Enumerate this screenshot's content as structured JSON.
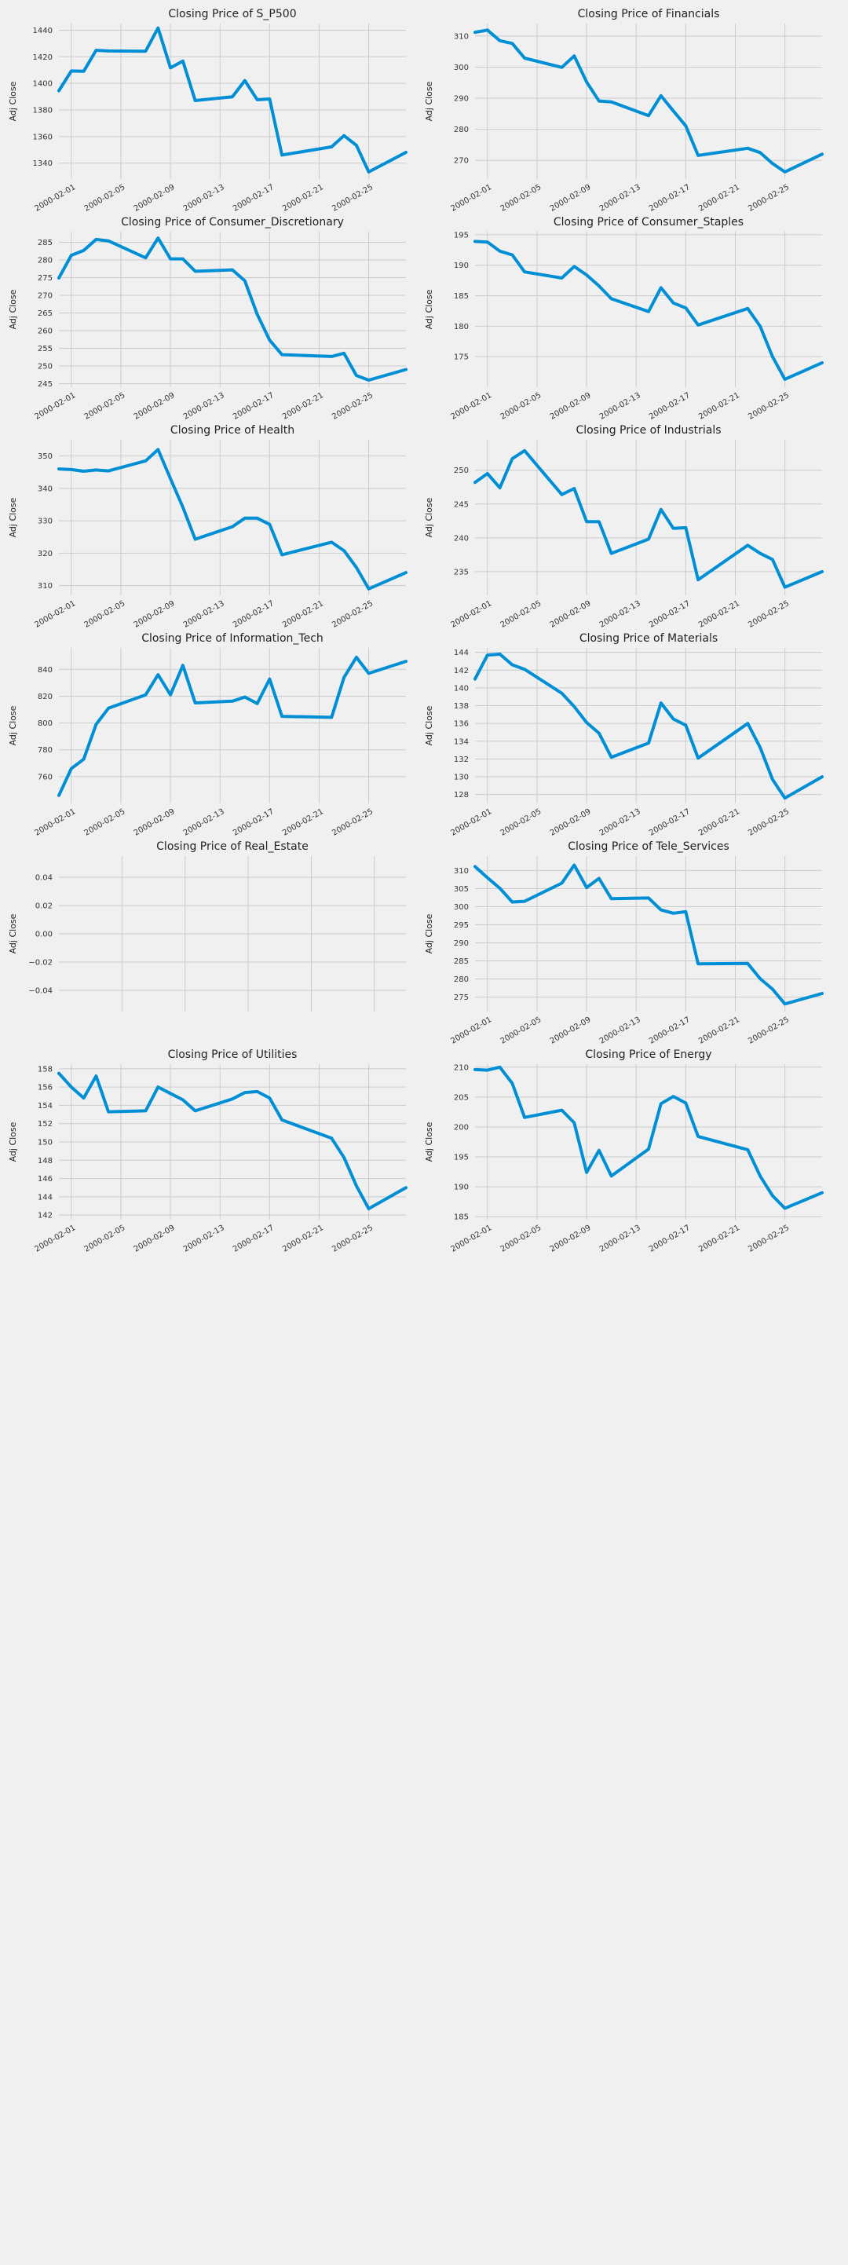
{
  "figure": {
    "background": "#f0f0f0",
    "line_color": "#008fd5",
    "grid_color": "#cbcbcb"
  },
  "chart_data": [
    {
      "type": "line",
      "title": "Closing Price of S_P500",
      "ylabel": "Adj Close",
      "xlim": [
        "2000-01-31",
        "2000-02-28"
      ],
      "ylim": [
        1328,
        1445
      ],
      "yticks": [
        1340,
        1360,
        1380,
        1400,
        1420,
        1440
      ],
      "xticks": [
        "2000-02-01",
        "2000-02-05",
        "2000-02-09",
        "2000-02-13",
        "2000-02-17",
        "2000-02-21",
        "2000-02-25"
      ],
      "grid": true,
      "series": [
        {
          "x": [
            "2000-01-31",
            "2000-02-01",
            "2000-02-02",
            "2000-02-03",
            "2000-02-04",
            "2000-02-07",
            "2000-02-08",
            "2000-02-09",
            "2000-02-10",
            "2000-02-11",
            "2000-02-14",
            "2000-02-15",
            "2000-02-16",
            "2000-02-17",
            "2000-02-18",
            "2000-02-22",
            "2000-02-23",
            "2000-02-24",
            "2000-02-25",
            "2000-02-28"
          ],
          "y": [
            1394.5,
            1409.3,
            1409.1,
            1424.9,
            1424.4,
            1424.2,
            1441.7,
            1411.7,
            1416.8,
            1387.1,
            1389.9,
            1402.1,
            1387.7,
            1388.3,
            1346.1,
            1352.2,
            1360.7,
            1353.4,
            1333.4,
            1348.1
          ]
        }
      ]
    },
    {
      "type": "line",
      "title": "Closing Price of Financials",
      "ylabel": "Adj Close",
      "xlim": [
        "2000-01-31",
        "2000-02-28"
      ],
      "ylim": [
        264,
        314
      ],
      "yticks": [
        270,
        280,
        290,
        300,
        310
      ],
      "xticks": [
        "2000-02-01",
        "2000-02-05",
        "2000-02-09",
        "2000-02-13",
        "2000-02-17",
        "2000-02-21",
        "2000-02-25"
      ],
      "grid": true,
      "series": [
        {
          "x": [
            "2000-01-31",
            "2000-02-01",
            "2000-02-02",
            "2000-02-03",
            "2000-02-04",
            "2000-02-07",
            "2000-02-08",
            "2000-02-09",
            "2000-02-10",
            "2000-02-11",
            "2000-02-14",
            "2000-02-15",
            "2000-02-16",
            "2000-02-17",
            "2000-02-18",
            "2000-02-22",
            "2000-02-23",
            "2000-02-24",
            "2000-02-25",
            "2000-02-28"
          ],
          "y": [
            311.2,
            311.9,
            308.5,
            307.6,
            302.9,
            299.9,
            303.6,
            295.2,
            289.1,
            288.8,
            284.4,
            290.8,
            285.9,
            281.1,
            271.6,
            273.9,
            272.5,
            269,
            266.3,
            272
          ]
        }
      ]
    },
    {
      "type": "line",
      "title": "Closing Price of Consumer_Discretionary",
      "ylabel": "Adj Close",
      "xlim": [
        "2000-01-31",
        "2000-02-28"
      ],
      "ylim": [
        244,
        288
      ],
      "yticks": [
        245,
        250,
        255,
        260,
        265,
        270,
        275,
        280,
        285
      ],
      "xticks": [
        "2000-02-01",
        "2000-02-05",
        "2000-02-09",
        "2000-02-13",
        "2000-02-17",
        "2000-02-21",
        "2000-02-25"
      ],
      "grid": true,
      "series": [
        {
          "x": [
            "2000-01-31",
            "2000-02-01",
            "2000-02-02",
            "2000-02-03",
            "2000-02-04",
            "2000-02-07",
            "2000-02-08",
            "2000-02-09",
            "2000-02-10",
            "2000-02-11",
            "2000-02-14",
            "2000-02-15",
            "2000-02-16",
            "2000-02-17",
            "2000-02-18",
            "2000-02-22",
            "2000-02-23",
            "2000-02-24",
            "2000-02-25",
            "2000-02-28"
          ],
          "y": [
            274.9,
            281.3,
            282.7,
            285.8,
            285.4,
            280.6,
            286.2,
            280.3,
            280.3,
            276.8,
            277.2,
            274.1,
            264.6,
            257.3,
            253.2,
            252.7,
            253.6,
            247.3,
            246,
            249
          ]
        }
      ]
    },
    {
      "type": "line",
      "title": "Closing Price of Consumer_Staples",
      "ylabel": "Adj Close",
      "xlim": [
        "2000-01-31",
        "2000-02-28"
      ],
      "ylim": [
        170,
        195.5
      ],
      "yticks": [
        175,
        180,
        185,
        190,
        195
      ],
      "xticks": [
        "2000-02-01",
        "2000-02-05",
        "2000-02-09",
        "2000-02-13",
        "2000-02-17",
        "2000-02-21",
        "2000-02-25"
      ],
      "grid": true,
      "series": [
        {
          "x": [
            "2000-01-31",
            "2000-02-01",
            "2000-02-02",
            "2000-02-03",
            "2000-02-04",
            "2000-02-07",
            "2000-02-08",
            "2000-02-09",
            "2000-02-10",
            "2000-02-11",
            "2000-02-14",
            "2000-02-15",
            "2000-02-16",
            "2000-02-17",
            "2000-02-18",
            "2000-02-22",
            "2000-02-23",
            "2000-02-24",
            "2000-02-25",
            "2000-02-28"
          ],
          "y": [
            193.9,
            193.8,
            192.3,
            191.7,
            188.9,
            187.9,
            189.8,
            188.4,
            186.6,
            184.5,
            182.4,
            186.3,
            183.8,
            183,
            180.2,
            182.9,
            180,
            175,
            171.3,
            174
          ]
        }
      ]
    },
    {
      "type": "line",
      "title": "Closing Price of Health",
      "ylabel": "Adj Close",
      "xlim": [
        "2000-01-31",
        "2000-02-28"
      ],
      "ylim": [
        307,
        355
      ],
      "yticks": [
        310,
        320,
        330,
        340,
        350
      ],
      "xticks": [
        "2000-02-01",
        "2000-02-05",
        "2000-02-09",
        "2000-02-13",
        "2000-02-17",
        "2000-02-21",
        "2000-02-25"
      ],
      "grid": true,
      "series": [
        {
          "x": [
            "2000-01-31",
            "2000-02-01",
            "2000-02-02",
            "2000-02-03",
            "2000-02-04",
            "2000-02-07",
            "2000-02-08",
            "2000-02-09",
            "2000-02-10",
            "2000-02-11",
            "2000-02-14",
            "2000-02-15",
            "2000-02-16",
            "2000-02-17",
            "2000-02-18",
            "2000-02-22",
            "2000-02-23",
            "2000-02-24",
            "2000-02-25",
            "2000-02-28"
          ],
          "y": [
            346,
            345.8,
            345.3,
            345.7,
            345.4,
            348.5,
            352,
            343,
            334.2,
            324.3,
            328.2,
            330.8,
            330.8,
            328.9,
            319.5,
            323.4,
            320.8,
            315.6,
            309,
            314
          ]
        }
      ]
    },
    {
      "type": "line",
      "title": "Closing Price of Industrials",
      "ylabel": "Adj Close",
      "xlim": [
        "2000-01-31",
        "2000-02-28"
      ],
      "ylim": [
        231.5,
        254.5
      ],
      "yticks": [
        235,
        240,
        245,
        250
      ],
      "xticks": [
        "2000-02-01",
        "2000-02-05",
        "2000-02-09",
        "2000-02-13",
        "2000-02-17",
        "2000-02-21",
        "2000-02-25"
      ],
      "grid": true,
      "series": [
        {
          "x": [
            "2000-01-31",
            "2000-02-01",
            "2000-02-02",
            "2000-02-03",
            "2000-02-04",
            "2000-02-07",
            "2000-02-08",
            "2000-02-09",
            "2000-02-10",
            "2000-02-11",
            "2000-02-14",
            "2000-02-15",
            "2000-02-16",
            "2000-02-17",
            "2000-02-18",
            "2000-02-22",
            "2000-02-23",
            "2000-02-24",
            "2000-02-25",
            "2000-02-28"
          ],
          "y": [
            248.2,
            249.5,
            247.4,
            251.7,
            252.9,
            246.4,
            247.3,
            242.4,
            242.4,
            237.7,
            239.8,
            244.2,
            241.4,
            241.5,
            233.8,
            238.9,
            237.7,
            236.8,
            232.7,
            235
          ]
        }
      ]
    },
    {
      "type": "line",
      "title": "Closing Price of Information_Tech",
      "ylabel": "Adj Close",
      "xlim": [
        "2000-01-31",
        "2000-02-28"
      ],
      "ylim": [
        740,
        856
      ],
      "yticks": [
        760,
        780,
        800,
        820,
        840
      ],
      "xticks": [
        "2000-02-01",
        "2000-02-05",
        "2000-02-09",
        "2000-02-13",
        "2000-02-17",
        "2000-02-21",
        "2000-02-25"
      ],
      "grid": true,
      "series": [
        {
          "x": [
            "2000-01-31",
            "2000-02-01",
            "2000-02-02",
            "2000-02-03",
            "2000-02-04",
            "2000-02-07",
            "2000-02-08",
            "2000-02-09",
            "2000-02-10",
            "2000-02-11",
            "2000-02-14",
            "2000-02-15",
            "2000-02-16",
            "2000-02-17",
            "2000-02-18",
            "2000-02-22",
            "2000-02-23",
            "2000-02-24",
            "2000-02-25",
            "2000-02-28"
          ],
          "y": [
            746,
            766,
            773,
            799,
            811,
            821,
            836,
            821,
            843,
            815,
            816.3,
            819.4,
            814.5,
            832.8,
            805,
            804.2,
            834,
            849,
            837,
            846
          ]
        }
      ]
    },
    {
      "type": "line",
      "title": "Closing Price of Materials",
      "ylabel": "Adj Close",
      "xlim": [
        "2000-01-31",
        "2000-02-28"
      ],
      "ylim": [
        127,
        144.5
      ],
      "yticks": [
        128,
        130,
        132,
        134,
        136,
        138,
        140,
        142,
        144
      ],
      "xticks": [
        "2000-02-01",
        "2000-02-05",
        "2000-02-09",
        "2000-02-13",
        "2000-02-17",
        "2000-02-21",
        "2000-02-25"
      ],
      "grid": true,
      "series": [
        {
          "x": [
            "2000-01-31",
            "2000-02-01",
            "2000-02-02",
            "2000-02-03",
            "2000-02-04",
            "2000-02-07",
            "2000-02-08",
            "2000-02-09",
            "2000-02-10",
            "2000-02-11",
            "2000-02-14",
            "2000-02-15",
            "2000-02-16",
            "2000-02-17",
            "2000-02-18",
            "2000-02-22",
            "2000-02-23",
            "2000-02-24",
            "2000-02-25",
            "2000-02-28"
          ],
          "y": [
            141,
            143.7,
            143.8,
            142.6,
            142.1,
            139.4,
            137.9,
            136.1,
            134.9,
            132.2,
            133.8,
            138.3,
            136.5,
            135.8,
            132.1,
            136,
            133.3,
            129.7,
            127.6,
            130
          ]
        }
      ]
    },
    {
      "type": "line",
      "title": "Closing Price of Real_Estate",
      "ylabel": "Adj Close",
      "xlim": [
        -0.055,
        0.055
      ],
      "ylim": [
        -0.055,
        0.055
      ],
      "yticks": [
        "0.04",
        "0.02",
        "0.00",
        "−0.02",
        "−0.04"
      ],
      "xticks": [],
      "grid": true,
      "series": []
    },
    {
      "type": "line",
      "title": "Closing Price of Tele_Services",
      "ylabel": "Adj Close",
      "xlim": [
        "2000-01-31",
        "2000-02-28"
      ],
      "ylim": [
        271,
        314
      ],
      "yticks": [
        275,
        280,
        285,
        290,
        295,
        300,
        305,
        310
      ],
      "xticks": [
        "2000-02-01",
        "2000-02-05",
        "2000-02-09",
        "2000-02-13",
        "2000-02-17",
        "2000-02-21",
        "2000-02-25"
      ],
      "grid": true,
      "series": [
        {
          "x": [
            "2000-01-31",
            "2000-02-01",
            "2000-02-02",
            "2000-02-03",
            "2000-02-04",
            "2000-02-07",
            "2000-02-08",
            "2000-02-09",
            "2000-02-10",
            "2000-02-11",
            "2000-02-14",
            "2000-02-15",
            "2000-02-16",
            "2000-02-17",
            "2000-02-18",
            "2000-02-22",
            "2000-02-23",
            "2000-02-24",
            "2000-02-25",
            "2000-02-28"
          ],
          "y": [
            311.1,
            308,
            305.1,
            301.3,
            301.5,
            306.5,
            311.5,
            305.3,
            307.8,
            302.2,
            302.4,
            299.1,
            298.2,
            298.6,
            284.2,
            284.3,
            280.1,
            277.2,
            273.1,
            276
          ]
        }
      ]
    },
    {
      "type": "line",
      "title": "Closing Price of Utilities",
      "ylabel": "Adj Close",
      "xlim": [
        "2000-01-31",
        "2000-02-28"
      ],
      "ylim": [
        141.5,
        158.5
      ],
      "yticks": [
        142,
        144,
        146,
        148,
        150,
        152,
        154,
        156,
        158
      ],
      "xticks": [
        "2000-02-01",
        "2000-02-05",
        "2000-02-09",
        "2000-02-13",
        "2000-02-17",
        "2000-02-21",
        "2000-02-25"
      ],
      "grid": true,
      "series": [
        {
          "x": [
            "2000-01-31",
            "2000-02-01",
            "2000-02-02",
            "2000-02-03",
            "2000-02-04",
            "2000-02-07",
            "2000-02-08",
            "2000-02-09",
            "2000-02-10",
            "2000-02-11",
            "2000-02-14",
            "2000-02-15",
            "2000-02-16",
            "2000-02-17",
            "2000-02-18",
            "2000-02-22",
            "2000-02-23",
            "2000-02-24",
            "2000-02-25",
            "2000-02-28"
          ],
          "y": [
            157.5,
            156,
            154.8,
            157.2,
            153.3,
            153.4,
            156,
            155.3,
            154.6,
            153.4,
            154.7,
            155.4,
            155.5,
            154.8,
            152.4,
            150.4,
            148.3,
            145.2,
            142.7,
            145
          ]
        }
      ]
    },
    {
      "type": "line",
      "title": "Closing Price of Energy",
      "ylabel": "Adj Close",
      "xlim": [
        "2000-01-31",
        "2000-02-28"
      ],
      "ylim": [
        184.5,
        210.5
      ],
      "yticks": [
        185,
        190,
        195,
        200,
        205,
        210
      ],
      "xticks": [
        "2000-02-01",
        "2000-02-05",
        "2000-02-09",
        "2000-02-13",
        "2000-02-17",
        "2000-02-21",
        "2000-02-25"
      ],
      "grid": true,
      "series": [
        {
          "x": [
            "2000-01-31",
            "2000-02-01",
            "2000-02-02",
            "2000-02-03",
            "2000-02-04",
            "2000-02-07",
            "2000-02-08",
            "2000-02-09",
            "2000-02-10",
            "2000-02-11",
            "2000-02-14",
            "2000-02-15",
            "2000-02-16",
            "2000-02-17",
            "2000-02-18",
            "2000-02-22",
            "2000-02-23",
            "2000-02-24",
            "2000-02-25",
            "2000-02-28"
          ],
          "y": [
            209.6,
            209.5,
            210,
            207.3,
            201.6,
            202.8,
            200.7,
            192.4,
            196.1,
            191.8,
            196.3,
            203.9,
            205.1,
            204,
            198.4,
            196.2,
            191.8,
            188.5,
            186.4,
            189
          ]
        }
      ]
    }
  ]
}
